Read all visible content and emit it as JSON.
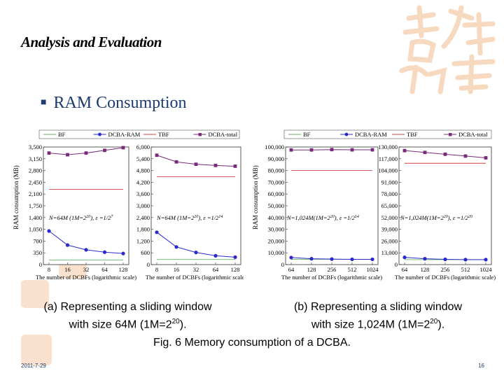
{
  "slide": {
    "title": "Analysis and Evaluation",
    "bullet": "RAM Consumption",
    "caption_a": "(a)  Representing a sliding window with size 64M (1M=2^20).",
    "caption_a_line1": "(a)  Representing a sliding window",
    "caption_a_line2": "with size 64M (1M=2",
    "caption_b_line1": "(b)  Representing a sliding window",
    "caption_b_line2": "with size 1,024M (1M=2",
    "caption_sup": "20",
    "caption_tail": ").",
    "figure_caption": "Fig. 6  Memory consumption of a DCBA.",
    "date": "2011-7-29",
    "page": "16"
  },
  "chart_data": [
    {
      "type": "line",
      "panel": "a-left",
      "legend": [
        "BF",
        "DCBA-RAM",
        "TBF",
        "DCBA-total"
      ],
      "x": [
        "8",
        "16",
        "32",
        "64",
        "128"
      ],
      "xlabel": "The number of DCBFs (logarithmic scale)",
      "ylabel": "RAM consumption (MB)",
      "ylim": [
        0,
        3500
      ],
      "yticks": [
        "0",
        "350",
        "700",
        "1,050",
        "1,400",
        "1,750",
        "2,100",
        "2,450",
        "2,800",
        "3,150",
        "3,500"
      ],
      "annotation": "N=64M (1M=2^20), ε =1/2^7",
      "series": [
        {
          "name": "BF",
          "values": [
            140,
            140,
            140,
            140,
            140
          ]
        },
        {
          "name": "DCBA-RAM",
          "values": [
            1000,
            580,
            440,
            370,
            330
          ]
        },
        {
          "name": "TBF",
          "values": [
            2240,
            2240,
            2240,
            2240,
            2240
          ]
        },
        {
          "name": "DCBA-total",
          "values": [
            3320,
            3270,
            3320,
            3400,
            3480
          ]
        }
      ]
    },
    {
      "type": "line",
      "panel": "a-right",
      "x": [
        "8",
        "16",
        "32",
        "64",
        "128"
      ],
      "xlabel": "The number of DCBFs (logarithmic scale)",
      "ylim": [
        0,
        6000
      ],
      "yticks": [
        "0",
        "600",
        "1,200",
        "1,800",
        "2,400",
        "3,000",
        "3,600",
        "4,200",
        "4,800",
        "5,400",
        "6,000"
      ],
      "annotation": "N=64M (1M=2^20), ε =1/2^14",
      "series": [
        {
          "name": "BF",
          "values": [
            260,
            260,
            260,
            260,
            260
          ]
        },
        {
          "name": "DCBA-RAM",
          "values": [
            1650,
            900,
            620,
            450,
            380
          ]
        },
        {
          "name": "TBF",
          "values": [
            4480,
            4480,
            4480,
            4480,
            4480
          ]
        },
        {
          "name": "DCBA-total",
          "values": [
            5580,
            5240,
            5120,
            5060,
            5020
          ]
        }
      ]
    },
    {
      "type": "line",
      "panel": "b-left",
      "legend": [
        "BF",
        "DCBA-RAM",
        "TBF",
        "DCBA-total"
      ],
      "x": [
        "64",
        "128",
        "256",
        "512",
        "1024"
      ],
      "xlabel": "The number of DCBFs (logarithmic scale)",
      "ylabel": "RAM consumption (MB)",
      "ylim": [
        0,
        100000
      ],
      "yticks": [
        "0",
        "10,000",
        "20,000",
        "30,000",
        "40,000",
        "50,000",
        "60,000",
        "70,000",
        "80,000",
        "90,000",
        "100,000"
      ],
      "annotation": "N=1,024M(1M=2^20), ε =1/2^14",
      "series": [
        {
          "name": "BF",
          "values": [
            4500,
            4500,
            4500,
            4500,
            4500
          ]
        },
        {
          "name": "DCBA-RAM",
          "values": [
            6000,
            5000,
            4700,
            4500,
            4500
          ]
        },
        {
          "name": "TBF",
          "values": [
            80000,
            80000,
            80000,
            80000,
            80000
          ]
        },
        {
          "name": "DCBA-total",
          "values": [
            97500,
            97500,
            97800,
            97600,
            97600
          ]
        }
      ]
    },
    {
      "type": "line",
      "panel": "b-right",
      "x": [
        "64",
        "128",
        "256",
        "512",
        "1024"
      ],
      "xlabel": "The number of DCBFs (logarithmic scale)",
      "ylim": [
        0,
        130000
      ],
      "yticks": [
        "0",
        "13,000",
        "26,000",
        "39,000",
        "52,000",
        "65,000",
        "78,000",
        "91,000",
        "104,000",
        "117,000",
        "130,000"
      ],
      "annotation": "N=1,024M(1M=2^20), ε =1/2^20",
      "series": [
        {
          "name": "BF",
          "values": [
            5500,
            5500,
            5500,
            5500,
            5500
          ]
        },
        {
          "name": "DCBA-RAM",
          "values": [
            8000,
            6500,
            5800,
            5500,
            5500
          ]
        },
        {
          "name": "TBF",
          "values": [
            112000,
            112000,
            112000,
            112000,
            112000
          ]
        },
        {
          "name": "DCBA-total",
          "values": [
            126000,
            124000,
            122000,
            120000,
            118000
          ]
        }
      ]
    }
  ],
  "colors": {
    "BF": "#66b366",
    "DCBA-RAM": "#2a2acc",
    "TBF": "#cc4444",
    "DCBA-total": "#7a2a7a",
    "accent": "#1c3b6e",
    "deco": "#f4c9a6"
  }
}
